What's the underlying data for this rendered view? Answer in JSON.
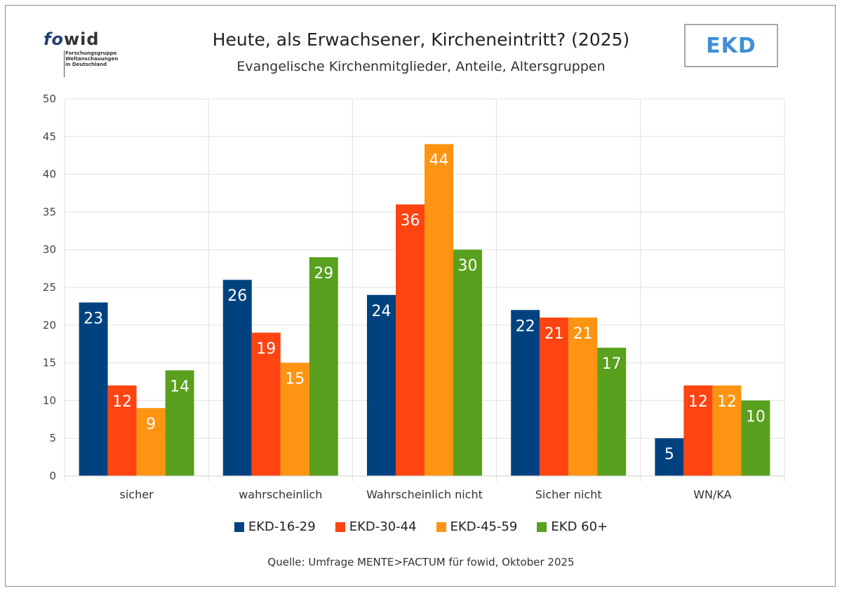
{
  "logo": {
    "fo": "fo",
    "wid": "wid",
    "lines": [
      "Forschungsgruppe",
      "Weltanschauungen",
      "in Deutschland"
    ]
  },
  "badge": {
    "text": "EKD"
  },
  "source": "Quelle: Umfrage MENTE>FACTUM für fowid, Oktober 2025",
  "colors": {
    "EKD-16-29": "#00427f",
    "EKD-30-44": "#ff4412",
    "EKD-45-59": "#ff9412",
    "EKD 60+": "#58a01e"
  },
  "chart_data": {
    "type": "bar",
    "title": "Heute, als Erwachsener, Kircheneintritt? (2025)",
    "subtitle": "Evangelische Kirchenmitglieder, Anteile, Altersgruppen",
    "categories": [
      "sicher",
      "wahrscheinlich",
      "Wahrscheinlich nicht",
      "Sicher nicht",
      "WN/KA"
    ],
    "series": [
      {
        "name": "EKD-16-29",
        "values": [
          23,
          26,
          24,
          22,
          5
        ]
      },
      {
        "name": "EKD-30-44",
        "values": [
          12,
          19,
          36,
          21,
          12
        ]
      },
      {
        "name": "EKD-45-59",
        "values": [
          9,
          15,
          44,
          21,
          12
        ]
      },
      {
        "name": "EKD 60+",
        "values": [
          14,
          29,
          30,
          17,
          10
        ]
      }
    ],
    "ylim": [
      0,
      50
    ],
    "yticks": [
      0,
      5,
      10,
      15,
      20,
      25,
      30,
      35,
      40,
      45,
      50
    ],
    "grid": true,
    "legend": "bottom",
    "xlabel": "",
    "ylabel": ""
  }
}
